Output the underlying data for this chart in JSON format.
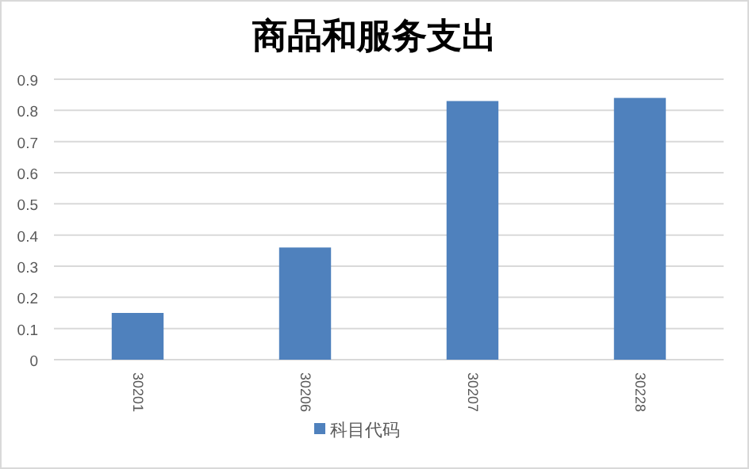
{
  "chart_data": {
    "type": "bar",
    "title": "商品和服务支出",
    "categories": [
      "30201",
      "30206",
      "30207",
      "30228"
    ],
    "series": [
      {
        "name": "科目代码",
        "color": "#4f81bd",
        "values": [
          0.15,
          0.36,
          0.83,
          0.84
        ]
      }
    ],
    "ylim": [
      0,
      0.9
    ],
    "yticks": [
      0,
      0.1,
      0.2,
      0.3,
      0.4,
      0.5,
      0.6,
      0.7,
      0.8,
      0.9
    ],
    "grid": "y",
    "legend": "bottom"
  }
}
